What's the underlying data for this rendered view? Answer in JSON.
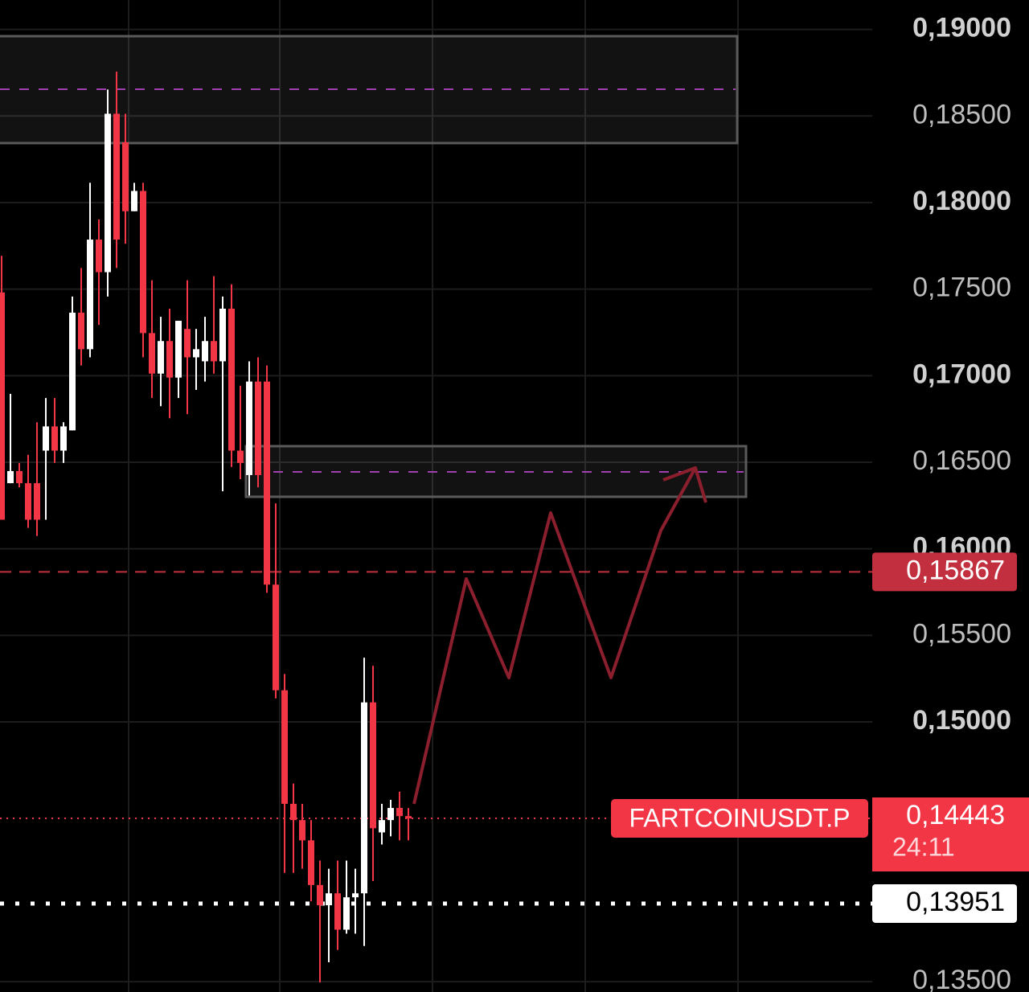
{
  "chart_data": {
    "type": "candlestick",
    "up_color": "#ffffff",
    "down_color": "#f23645",
    "grid": true,
    "ylim": [
      0.1344,
      0.1917
    ],
    "yticks": [
      {
        "value": 0.19,
        "label": "0,19000"
      },
      {
        "value": 0.185,
        "label": "0,18500"
      },
      {
        "value": 0.18,
        "label": "0,18000"
      },
      {
        "value": 0.175,
        "label": "0,17500"
      },
      {
        "value": 0.17,
        "label": "0,17000"
      },
      {
        "value": 0.165,
        "label": "0,16500"
      },
      {
        "value": 0.16,
        "label": "0,16000"
      },
      {
        "value": 0.155,
        "label": "0,15500"
      },
      {
        "value": 0.15,
        "label": "0,15000"
      },
      {
        "value": 0.135,
        "label": "0,13500"
      }
    ],
    "open": [
      0.17481,
      0.16379,
      0.16449,
      0.16379,
      0.16379,
      0.16567,
      0.16707,
      0.16567,
      0.16684,
      0.17364,
      0.17153,
      0.17786,
      0.17598,
      0.18513,
      0.18348,
      0.1795,
      0.18067,
      0.17246,
      0.17012,
      0.172,
      0.16989,
      0.1727,
      0.17106,
      0.17083,
      0.172,
      0.17083,
      0.17387,
      0.16567,
      0.16426,
      0.16966,
      0.16966,
      0.15793,
      0.15183,
      0.14527,
      0.14433,
      0.14316,
      0.14058,
      0.13941,
      0.1401,
      0.138,
      0.13987,
      0.1401,
      0.15113,
      0.14362,
      0.14433,
      0.14503,
      0.14456
    ],
    "high": [
      0.17692,
      0.16895,
      0.16496,
      0.16543,
      0.16731,
      0.16871,
      0.16871,
      0.16731,
      0.17457,
      0.17622,
      0.18114,
      0.17903,
      0.18653,
      0.18756,
      0.18513,
      0.18114,
      0.18114,
      0.17551,
      0.1734,
      0.17387,
      0.17317,
      0.17551,
      0.1727,
      0.1734,
      0.17575,
      0.17457,
      0.17528,
      0.16942,
      0.17083,
      0.17106,
      0.17059,
      0.16262,
      0.15277,
      0.14644,
      0.14527,
      0.14433,
      0.14199,
      0.14152,
      0.14199,
      0.14199,
      0.14152,
      0.15371,
      0.15324,
      0.14527,
      0.1455,
      0.14597,
      0.14503
    ],
    "low": [
      0.16168,
      0.16379,
      0.16355,
      0.16121,
      0.16074,
      0.16168,
      0.16496,
      0.16496,
      0.16684,
      0.17059,
      0.17106,
      0.17293,
      0.17457,
      0.17622,
      0.17762,
      0.1795,
      0.17106,
      0.16871,
      0.16824,
      0.16754,
      0.16871,
      0.16778,
      0.16918,
      0.16966,
      0.17012,
      0.16332,
      0.16473,
      0.16402,
      0.16308,
      0.16355,
      0.15746,
      0.15136,
      0.14128,
      0.14128,
      0.14152,
      0.13964,
      0.13495,
      0.13612,
      0.13683,
      0.13777,
      0.13777,
      0.13706,
      0.14081,
      0.14292,
      0.14339,
      0.14316,
      0.14316
    ],
    "close": [
      0.16168,
      0.16449,
      0.16379,
      0.16168,
      0.16168,
      0.16707,
      0.16567,
      0.16707,
      0.17364,
      0.17153,
      0.17786,
      0.17598,
      0.18513,
      0.17786,
      0.1795,
      0.18067,
      0.17246,
      0.17012,
      0.172,
      0.16989,
      0.17317,
      0.17106,
      0.17153,
      0.172,
      0.17083,
      0.17387,
      0.16567,
      0.16496,
      0.16966,
      0.16426,
      0.15793,
      0.15183,
      0.14527,
      0.14433,
      0.14316,
      0.14058,
      0.13941,
      0.1401,
      0.138,
      0.13987,
      0.1401,
      0.15113,
      0.14386,
      0.14433,
      0.14503,
      0.14456,
      0.14443
    ],
    "price_lines": [
      {
        "value": 0.15867,
        "label": "0,15867",
        "color": "#c2303f",
        "style": "dashed"
      },
      {
        "value": 0.13951,
        "label": "0,13951",
        "color": "#ffffff",
        "style": "dotted"
      }
    ],
    "last_price": {
      "value": 0.14443,
      "label": "0,14443",
      "countdown": "24:11",
      "symbol": "FARTCOINUSDT.P",
      "color": "#f23645"
    }
  }
}
